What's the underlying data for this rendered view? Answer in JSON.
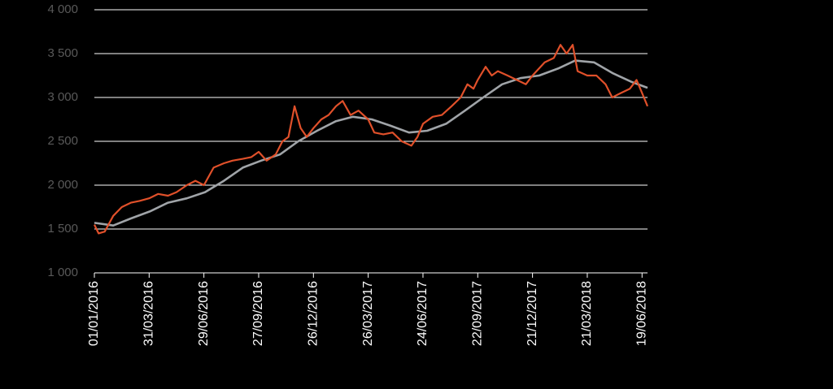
{
  "chart_data": {
    "type": "line",
    "xlim": [
      "2016-01-01",
      "2018-06-28"
    ],
    "xticks": [
      {
        "value": "2016-01-01",
        "label": "01/01/2016"
      },
      {
        "value": "2016-03-31",
        "label": "31/03/2016"
      },
      {
        "value": "2016-06-29",
        "label": "29/06/2016"
      },
      {
        "value": "2016-09-27",
        "label": "27/09/2016"
      },
      {
        "value": "2016-12-26",
        "label": "26/12/2016"
      },
      {
        "value": "2017-03-26",
        "label": "26/03/2017"
      },
      {
        "value": "2017-06-24",
        "label": "24/06/2017"
      },
      {
        "value": "2017-09-22",
        "label": "22/09/2017"
      },
      {
        "value": "2017-12-21",
        "label": "21/12/2017"
      },
      {
        "value": "2018-03-21",
        "label": "21/03/2018"
      },
      {
        "value": "2018-06-19",
        "label": "19/06/2018"
      }
    ],
    "ylim": [
      1000,
      4000
    ],
    "yticks": [
      {
        "value": 1000,
        "label": "1 000"
      },
      {
        "value": 1500,
        "label": "1 500"
      },
      {
        "value": 2000,
        "label": "2 000"
      },
      {
        "value": 2500,
        "label": "2 500"
      },
      {
        "value": 3000,
        "label": "3 000"
      },
      {
        "value": 3500,
        "label": "3 500"
      },
      {
        "value": 4000,
        "label": "4 000"
      }
    ],
    "grid": true,
    "series": [
      {
        "color": "#e0502a",
        "x": [
          "2016-01-01",
          "2016-01-08",
          "2016-01-18",
          "2016-02-01",
          "2016-02-15",
          "2016-03-01",
          "2016-03-15",
          "2016-03-31",
          "2016-04-15",
          "2016-05-01",
          "2016-05-15",
          "2016-06-01",
          "2016-06-15",
          "2016-06-29",
          "2016-07-15",
          "2016-08-01",
          "2016-08-15",
          "2016-09-01",
          "2016-09-15",
          "2016-09-27",
          "2016-10-10",
          "2016-10-25",
          "2016-11-05",
          "2016-11-15",
          "2016-11-25",
          "2016-12-05",
          "2016-12-15",
          "2016-12-26",
          "2017-01-08",
          "2017-01-20",
          "2017-02-01",
          "2017-02-12",
          "2017-02-25",
          "2017-03-10",
          "2017-03-26",
          "2017-04-05",
          "2017-04-20",
          "2017-05-05",
          "2017-05-20",
          "2017-06-05",
          "2017-06-15",
          "2017-06-24",
          "2017-07-10",
          "2017-07-25",
          "2017-08-10",
          "2017-08-25",
          "2017-09-05",
          "2017-09-15",
          "2017-09-22",
          "2017-10-05",
          "2017-10-15",
          "2017-10-25",
          "2017-11-10",
          "2017-11-25",
          "2017-12-10",
          "2017-12-21",
          "2018-01-10",
          "2018-01-25",
          "2018-02-05",
          "2018-02-15",
          "2018-02-25",
          "2018-03-05",
          "2018-03-21",
          "2018-04-05",
          "2018-04-20",
          "2018-05-01",
          "2018-05-15",
          "2018-05-30",
          "2018-06-10",
          "2018-06-19",
          "2018-06-28"
        ],
        "values": [
          1550,
          1450,
          1470,
          1650,
          1750,
          1800,
          1820,
          1850,
          1900,
          1880,
          1920,
          2000,
          2050,
          2000,
          2200,
          2250,
          2280,
          2300,
          2320,
          2380,
          2280,
          2350,
          2500,
          2550,
          2900,
          2650,
          2550,
          2650,
          2750,
          2800,
          2900,
          2960,
          2800,
          2850,
          2750,
          2600,
          2580,
          2600,
          2500,
          2450,
          2550,
          2700,
          2780,
          2800,
          2900,
          3000,
          3150,
          3100,
          3200,
          3350,
          3250,
          3300,
          3250,
          3200,
          3150,
          3250,
          3400,
          3450,
          3600,
          3500,
          3600,
          3300,
          3250,
          3250,
          3150,
          3000,
          3050,
          3100,
          3200,
          3050,
          2900
        ]
      },
      {
        "color": "#a0a4a8",
        "x": [
          "2016-01-01",
          "2016-02-01",
          "2016-03-01",
          "2016-04-01",
          "2016-05-01",
          "2016-06-01",
          "2016-07-01",
          "2016-08-01",
          "2016-09-01",
          "2016-10-01",
          "2016-11-01",
          "2016-12-01",
          "2017-01-01",
          "2017-02-01",
          "2017-03-01",
          "2017-04-01",
          "2017-05-01",
          "2017-06-01",
          "2017-07-01",
          "2017-08-01",
          "2017-09-01",
          "2017-10-01",
          "2017-11-01",
          "2017-12-01",
          "2018-01-01",
          "2018-02-01",
          "2018-03-01",
          "2018-04-01",
          "2018-05-01",
          "2018-06-01",
          "2018-06-28"
        ],
        "values": [
          1570,
          1540,
          1620,
          1700,
          1800,
          1850,
          1920,
          2050,
          2200,
          2280,
          2350,
          2500,
          2620,
          2730,
          2780,
          2750,
          2680,
          2600,
          2620,
          2700,
          2850,
          3000,
          3150,
          3220,
          3250,
          3330,
          3420,
          3400,
          3280,
          3180,
          3110
        ]
      }
    ]
  }
}
